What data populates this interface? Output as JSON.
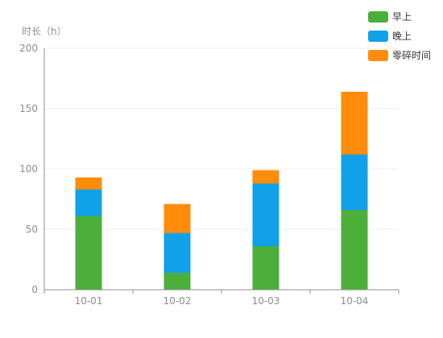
{
  "chart_data": {
    "type": "bar",
    "stacked": true,
    "title": "",
    "xlabel": "",
    "ylabel": "时长（h）",
    "categories": [
      "10-01",
      "10-02",
      "10-03",
      "10-04"
    ],
    "series": [
      {
        "name": "早上",
        "color": "#4caf3a",
        "values": [
          61,
          14,
          36,
          66
        ]
      },
      {
        "name": "晚上",
        "color": "#11a1e9",
        "values": [
          22,
          33,
          52,
          46
        ]
      },
      {
        "name": "零碎时间",
        "color": "#ff8c0a",
        "values": [
          10,
          24,
          11,
          52
        ]
      }
    ],
    "ylim": [
      0,
      200
    ],
    "yticks": [
      0,
      50,
      100,
      150,
      200
    ],
    "grid": true,
    "legend_position": "top-right"
  }
}
